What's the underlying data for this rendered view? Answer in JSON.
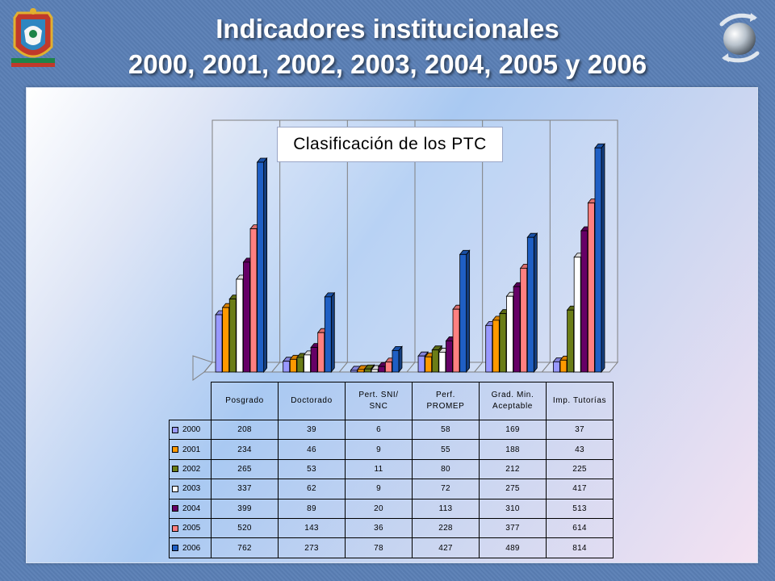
{
  "slide": {
    "title_line1": "Indicadores institucionales",
    "title_line2": "2000, 2001, 2002, 2003, 2004, 2005 y 2006"
  },
  "icons": {
    "left_logo": "university-crest-icon",
    "right_logo": "globe-arrows-icon"
  },
  "chart_data": {
    "type": "bar",
    "title": "Clasificación de los PTC",
    "categories": [
      "Posgrado",
      "Doctorado",
      "Pert. SNI/ SNC",
      "Perf. PROMEP",
      "Grad. Min. Aceptable",
      "Imp. Tutorías"
    ],
    "category_lines": [
      [
        "Posgrado"
      ],
      [
        "Doctorado"
      ],
      [
        "Pert. SNI/",
        "SNC"
      ],
      [
        "Perf.",
        "PROMEP"
      ],
      [
        "Grad. Min.",
        "Aceptable"
      ],
      [
        "Imp. Tutorías"
      ]
    ],
    "series": [
      {
        "name": "2000",
        "values": [
          208,
          39,
          6,
          58,
          169,
          37
        ],
        "color": "#9999ff"
      },
      {
        "name": "2001",
        "values": [
          234,
          46,
          9,
          55,
          188,
          43
        ],
        "color": "#ff9900"
      },
      {
        "name": "2002",
        "values": [
          265,
          53,
          11,
          80,
          212,
          225
        ],
        "color": "#6b7d17"
      },
      {
        "name": "2003",
        "values": [
          337,
          62,
          9,
          72,
          275,
          417
        ],
        "color": "#ffffff"
      },
      {
        "name": "2004",
        "values": [
          399,
          89,
          20,
          113,
          310,
          513
        ],
        "color": "#660066"
      },
      {
        "name": "2005",
        "values": [
          520,
          143,
          36,
          228,
          377,
          614
        ],
        "color": "#ff8080"
      },
      {
        "name": "2006",
        "values": [
          762,
          273,
          78,
          427,
          489,
          814
        ],
        "color": "#1f5fc4"
      }
    ],
    "ylim": [
      0,
      850
    ],
    "grid": false,
    "legend": "table-left",
    "data_table": true
  }
}
